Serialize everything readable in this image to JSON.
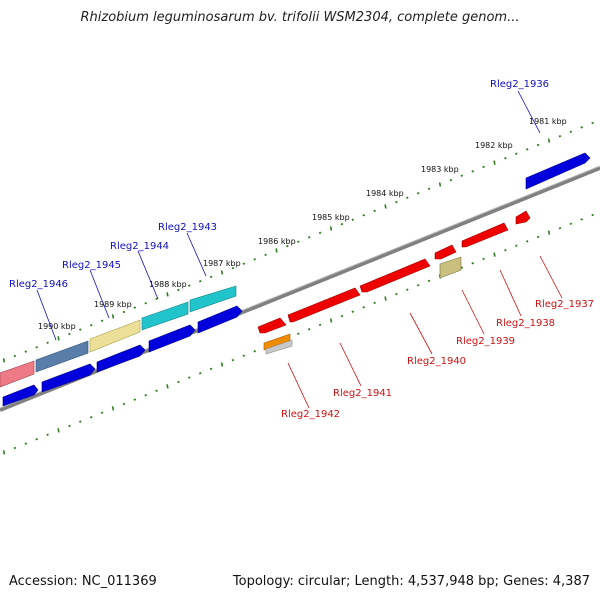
{
  "title": "Rhizobium leguminosarum bv. trifolii WSM2304, complete genom...",
  "footer": {
    "accession": "Accession: NC_011369",
    "stats": "Topology: circular; Length: 4,537,948 bp; Genes: 4,387"
  },
  "colors": {
    "forward_label": "#1010c0",
    "reverse_label": "#d01010",
    "backbone": "#808080",
    "tick": "#2e7d1c"
  },
  "kbp_ticks": [
    "1981 kbp",
    "1982 kbp",
    "1983 kbp",
    "1984 kbp",
    "1985 kbp",
    "1986 kbp",
    "1987 kbp",
    "1988 kbp",
    "1989 kbp",
    "1990 kbp"
  ],
  "forward_labels": [
    "Rleg2_1936",
    "Rleg2_1943",
    "Rleg2_1944",
    "Rleg2_1945",
    "Rleg2_1946"
  ],
  "reverse_labels": [
    "Rleg2_1937",
    "Rleg2_1938",
    "Rleg2_1939",
    "Rleg2_1940",
    "Rleg2_1941",
    "Rleg2_1942"
  ]
}
